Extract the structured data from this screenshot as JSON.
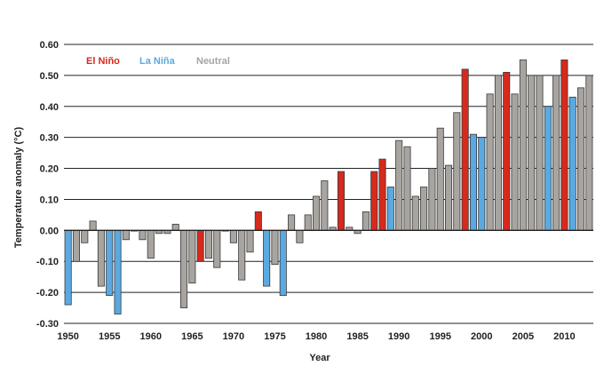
{
  "chart_data": {
    "type": "bar",
    "title": "",
    "xlabel": "Year",
    "ylabel": "Temperature anomaly (°C)",
    "ylim": [
      -0.3,
      0.6
    ],
    "y_ticks": [
      "-0.30",
      "-0.20",
      "-0.10",
      "0.00",
      "0.10",
      "0.20",
      "0.30",
      "0.40",
      "0.50",
      "0.60"
    ],
    "x_ticks": [
      "1950",
      "1955",
      "1960",
      "1965",
      "1970",
      "1975",
      "1980",
      "1985",
      "1990",
      "1995",
      "2000",
      "2005",
      "2010"
    ],
    "grid": true,
    "legend_position": "top-left",
    "legend": [
      {
        "key": "elnino",
        "label": "El Niño",
        "color": "#d62a1c"
      },
      {
        "key": "lanina",
        "label": "La Niña",
        "color": "#5aa9e0"
      },
      {
        "key": "neutral",
        "label": "Neutral",
        "color": "#a8a4a0"
      }
    ],
    "series": [
      {
        "year": 1950,
        "value": -0.24,
        "type": "lanina"
      },
      {
        "year": 1951,
        "value": -0.1,
        "type": "neutral"
      },
      {
        "year": 1952,
        "value": -0.04,
        "type": "neutral"
      },
      {
        "year": 1953,
        "value": 0.03,
        "type": "neutral"
      },
      {
        "year": 1954,
        "value": -0.18,
        "type": "neutral"
      },
      {
        "year": 1955,
        "value": -0.21,
        "type": "lanina"
      },
      {
        "year": 1956,
        "value": -0.27,
        "type": "lanina"
      },
      {
        "year": 1957,
        "value": -0.03,
        "type": "neutral"
      },
      {
        "year": 1958,
        "value": 0.0,
        "type": "neutral"
      },
      {
        "year": 1959,
        "value": -0.03,
        "type": "neutral"
      },
      {
        "year": 1960,
        "value": -0.09,
        "type": "neutral"
      },
      {
        "year": 1961,
        "value": -0.01,
        "type": "neutral"
      },
      {
        "year": 1962,
        "value": -0.01,
        "type": "neutral"
      },
      {
        "year": 1963,
        "value": 0.02,
        "type": "neutral"
      },
      {
        "year": 1964,
        "value": -0.25,
        "type": "neutral"
      },
      {
        "year": 1965,
        "value": -0.17,
        "type": "neutral"
      },
      {
        "year": 1966,
        "value": -0.1,
        "type": "elnino"
      },
      {
        "year": 1967,
        "value": -0.09,
        "type": "neutral"
      },
      {
        "year": 1968,
        "value": -0.12,
        "type": "neutral"
      },
      {
        "year": 1969,
        "value": 0.0,
        "type": "neutral"
      },
      {
        "year": 1970,
        "value": -0.04,
        "type": "neutral"
      },
      {
        "year": 1971,
        "value": -0.16,
        "type": "neutral"
      },
      {
        "year": 1972,
        "value": -0.07,
        "type": "neutral"
      },
      {
        "year": 1973,
        "value": 0.06,
        "type": "elnino"
      },
      {
        "year": 1974,
        "value": -0.18,
        "type": "lanina"
      },
      {
        "year": 1975,
        "value": -0.11,
        "type": "neutral"
      },
      {
        "year": 1976,
        "value": -0.21,
        "type": "lanina"
      },
      {
        "year": 1977,
        "value": 0.05,
        "type": "neutral"
      },
      {
        "year": 1978,
        "value": -0.04,
        "type": "neutral"
      },
      {
        "year": 1979,
        "value": 0.05,
        "type": "neutral"
      },
      {
        "year": 1980,
        "value": 0.11,
        "type": "neutral"
      },
      {
        "year": 1981,
        "value": 0.16,
        "type": "neutral"
      },
      {
        "year": 1982,
        "value": 0.01,
        "type": "neutral"
      },
      {
        "year": 1983,
        "value": 0.19,
        "type": "elnino"
      },
      {
        "year": 1984,
        "value": 0.01,
        "type": "neutral"
      },
      {
        "year": 1985,
        "value": -0.01,
        "type": "neutral"
      },
      {
        "year": 1986,
        "value": 0.06,
        "type": "neutral"
      },
      {
        "year": 1987,
        "value": 0.19,
        "type": "elnino"
      },
      {
        "year": 1988,
        "value": 0.23,
        "type": "elnino"
      },
      {
        "year": 1989,
        "value": 0.14,
        "type": "lanina"
      },
      {
        "year": 1990,
        "value": 0.29,
        "type": "neutral"
      },
      {
        "year": 1991,
        "value": 0.27,
        "type": "neutral"
      },
      {
        "year": 1992,
        "value": 0.11,
        "type": "neutral"
      },
      {
        "year": 1993,
        "value": 0.14,
        "type": "neutral"
      },
      {
        "year": 1994,
        "value": 0.2,
        "type": "neutral"
      },
      {
        "year": 1995,
        "value": 0.33,
        "type": "neutral"
      },
      {
        "year": 1996,
        "value": 0.21,
        "type": "neutral"
      },
      {
        "year": 1997,
        "value": 0.38,
        "type": "neutral"
      },
      {
        "year": 1998,
        "value": 0.52,
        "type": "elnino"
      },
      {
        "year": 1999,
        "value": 0.31,
        "type": "lanina"
      },
      {
        "year": 2000,
        "value": 0.3,
        "type": "lanina"
      },
      {
        "year": 2001,
        "value": 0.44,
        "type": "neutral"
      },
      {
        "year": 2002,
        "value": 0.5,
        "type": "neutral"
      },
      {
        "year": 2003,
        "value": 0.51,
        "type": "elnino"
      },
      {
        "year": 2004,
        "value": 0.44,
        "type": "neutral"
      },
      {
        "year": 2005,
        "value": 0.55,
        "type": "neutral"
      },
      {
        "year": 2006,
        "value": 0.5,
        "type": "neutral"
      },
      {
        "year": 2007,
        "value": 0.5,
        "type": "neutral"
      },
      {
        "year": 2008,
        "value": 0.4,
        "type": "lanina"
      },
      {
        "year": 2009,
        "value": 0.5,
        "type": "neutral"
      },
      {
        "year": 2010,
        "value": 0.55,
        "type": "elnino"
      },
      {
        "year": 2011,
        "value": 0.43,
        "type": "lanina"
      },
      {
        "year": 2012,
        "value": 0.46,
        "type": "neutral"
      },
      {
        "year": 2013,
        "value": 0.5,
        "type": "neutral"
      }
    ]
  }
}
